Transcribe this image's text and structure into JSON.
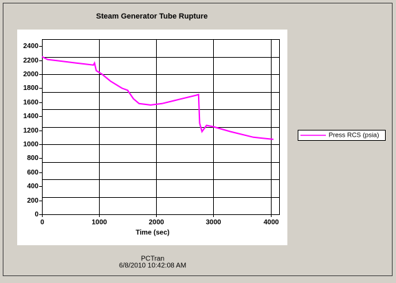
{
  "chart_data": {
    "type": "line",
    "title": "Steam Generator Tube Rupture",
    "x_label": "Time (sec)",
    "x": [
      0,
      100,
      300,
      600,
      900,
      920,
      950,
      1050,
      1200,
      1400,
      1500,
      1600,
      1700,
      1900,
      2100,
      2400,
      2700,
      2740,
      2760,
      2800,
      2880,
      3000,
      3300,
      3700,
      4050
    ],
    "series": [
      {
        "name": "Press RCS (psia)",
        "color": "#ff00ff",
        "values": [
          2250,
          2210,
          2190,
          2160,
          2130,
          2160,
          2050,
          2000,
          1900,
          1800,
          1770,
          1650,
          1580,
          1560,
          1580,
          1640,
          1700,
          1710,
          1300,
          1180,
          1270,
          1250,
          1180,
          1100,
          1070
        ]
      }
    ],
    "xlim": [
      0,
      4150
    ],
    "ylim": [
      0,
      2500
    ],
    "xticks": [
      0,
      1000,
      2000,
      3000,
      4000
    ],
    "yticks": [
      0,
      200,
      400,
      600,
      800,
      1000,
      1200,
      1400,
      1600,
      1800,
      2000,
      2200,
      2400
    ],
    "ygrid": [
      250,
      500,
      750,
      1000,
      1250,
      1500,
      1750,
      2000,
      2250
    ],
    "grid": true,
    "legend": "right",
    "footer": [
      "PCTran",
      "6/8/2010 10:42:08 AM"
    ]
  }
}
